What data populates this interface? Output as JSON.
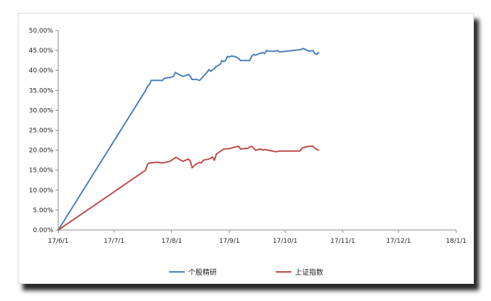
{
  "chart_data": {
    "type": "line",
    "title": "",
    "xlabel": "",
    "ylabel": "",
    "x_tick_labels": [
      "17/6/1",
      "17/7/1",
      "17/8/1",
      "17/9/1",
      "17/10/1",
      "17/11/1",
      "17/12/1",
      "18/1/1"
    ],
    "y_tick_labels": [
      "0.00%",
      "5.00%",
      "10.00%",
      "15.00%",
      "20.00%",
      "25.00%",
      "30.00%",
      "35.00%",
      "40.00%",
      "45.00%",
      "50.00%"
    ],
    "xlim": [
      "2017-06-01",
      "2018-01-01"
    ],
    "ylim": [
      0,
      50
    ],
    "grid": false,
    "legend_position": "bottom",
    "series": [
      {
        "name": "个股精研",
        "color": "#4a7ebb",
        "points": [
          [
            "2017-06-01",
            0
          ],
          [
            "2017-07-18",
            35
          ],
          [
            "2017-07-19",
            36
          ],
          [
            "2017-07-20",
            36.5
          ],
          [
            "2017-07-21",
            37.5
          ],
          [
            "2017-07-24",
            37.5
          ],
          [
            "2017-07-27",
            37.5
          ],
          [
            "2017-07-28",
            38
          ],
          [
            "2017-07-31",
            38.2
          ],
          [
            "2017-08-02",
            38.5
          ],
          [
            "2017-08-03",
            39.5
          ],
          [
            "2017-08-04",
            39.2
          ],
          [
            "2017-08-07",
            38.5
          ],
          [
            "2017-08-09",
            38.8
          ],
          [
            "2017-08-10",
            39
          ],
          [
            "2017-08-11",
            38.5
          ],
          [
            "2017-08-12",
            37.7
          ],
          [
            "2017-08-14",
            37.8
          ],
          [
            "2017-08-16",
            37.5
          ],
          [
            "2017-08-17",
            38
          ],
          [
            "2017-08-20",
            39.5
          ],
          [
            "2017-08-21",
            40.2
          ],
          [
            "2017-08-22",
            39.8
          ],
          [
            "2017-08-23",
            40.2
          ],
          [
            "2017-08-24",
            40.5
          ],
          [
            "2017-08-25",
            41
          ],
          [
            "2017-08-27",
            41.5
          ],
          [
            "2017-08-28",
            42.5
          ],
          [
            "2017-08-29",
            42.2
          ],
          [
            "2017-08-30",
            42.5
          ],
          [
            "2017-08-31",
            43.5
          ],
          [
            "2017-09-01",
            43.4
          ],
          [
            "2017-09-02",
            43.6
          ],
          [
            "2017-09-04",
            43.5
          ],
          [
            "2017-09-06",
            43
          ],
          [
            "2017-09-07",
            42.5
          ],
          [
            "2017-09-12",
            42.5
          ],
          [
            "2017-09-13",
            43.5
          ],
          [
            "2017-09-14",
            44
          ],
          [
            "2017-09-15",
            43.8
          ],
          [
            "2017-09-17",
            44.2
          ],
          [
            "2017-09-19",
            44.5
          ],
          [
            "2017-09-20",
            44.2
          ],
          [
            "2017-09-21",
            45
          ],
          [
            "2017-09-23",
            44.8
          ],
          [
            "2017-09-25",
            44.8
          ],
          [
            "2017-09-27",
            45
          ],
          [
            "2017-09-28",
            44.6
          ],
          [
            "2017-10-09",
            45.2
          ],
          [
            "2017-10-11",
            45.5
          ],
          [
            "2017-10-12",
            45.2
          ],
          [
            "2017-10-13",
            45
          ],
          [
            "2017-10-14",
            44.8
          ],
          [
            "2017-10-16",
            45
          ],
          [
            "2017-10-17",
            44.2
          ],
          [
            "2017-10-18",
            44
          ],
          [
            "2017-10-19",
            44.5
          ]
        ]
      },
      {
        "name": "上证指数",
        "color": "#be4b48",
        "points": [
          [
            "2017-06-01",
            0
          ],
          [
            "2017-07-18",
            15
          ],
          [
            "2017-07-19",
            16.5
          ],
          [
            "2017-07-20",
            16.8
          ],
          [
            "2017-07-24",
            17
          ],
          [
            "2017-07-27",
            16.8
          ],
          [
            "2017-07-31",
            17.2
          ],
          [
            "2017-08-02",
            17.8
          ],
          [
            "2017-08-03",
            18.2
          ],
          [
            "2017-08-04",
            18
          ],
          [
            "2017-08-07",
            17.2
          ],
          [
            "2017-08-09",
            17.6
          ],
          [
            "2017-08-10",
            17.8
          ],
          [
            "2017-08-11",
            17.3
          ],
          [
            "2017-08-12",
            15.6
          ],
          [
            "2017-08-14",
            16.5
          ],
          [
            "2017-08-16",
            17
          ],
          [
            "2017-08-17",
            16.8
          ],
          [
            "2017-08-18",
            17.5
          ],
          [
            "2017-08-21",
            17.8
          ],
          [
            "2017-08-23",
            18.3
          ],
          [
            "2017-08-24",
            17.5
          ],
          [
            "2017-08-25",
            19
          ],
          [
            "2017-08-28",
            20
          ],
          [
            "2017-08-29",
            20.3
          ],
          [
            "2017-09-01",
            20.4
          ],
          [
            "2017-09-04",
            20.8
          ],
          [
            "2017-09-06",
            21
          ],
          [
            "2017-09-07",
            20.3
          ],
          [
            "2017-09-11",
            20.5
          ],
          [
            "2017-09-12",
            20.8
          ],
          [
            "2017-09-13",
            21
          ],
          [
            "2017-09-15",
            20
          ],
          [
            "2017-09-18",
            20.3
          ],
          [
            "2017-09-19",
            20
          ],
          [
            "2017-09-20",
            20.2
          ],
          [
            "2017-09-22",
            20
          ],
          [
            "2017-09-26",
            19.6
          ],
          [
            "2017-09-28",
            19.8
          ],
          [
            "2017-10-09",
            19.8
          ],
          [
            "2017-10-10",
            20.5
          ],
          [
            "2017-10-12",
            20.8
          ],
          [
            "2017-10-14",
            21
          ],
          [
            "2017-10-16",
            21
          ],
          [
            "2017-10-17",
            20.5
          ],
          [
            "2017-10-19",
            20
          ]
        ]
      }
    ]
  }
}
